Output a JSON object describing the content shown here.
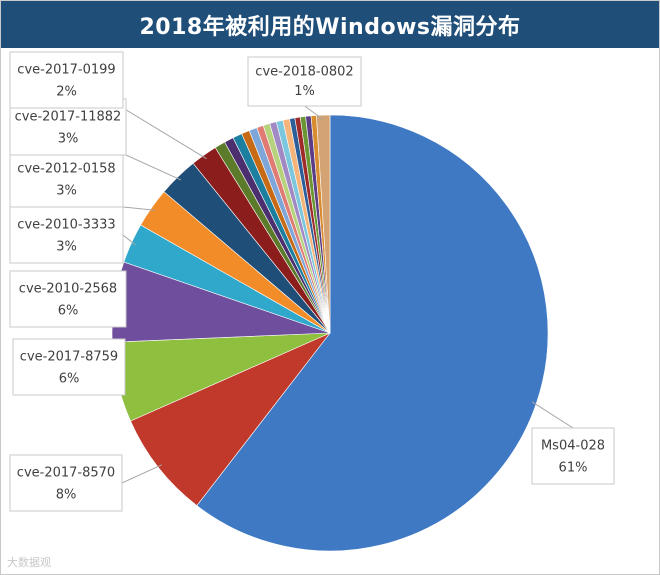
{
  "chart_data": {
    "type": "pie",
    "title": "2018年被利用的Windows漏洞分布",
    "slices": [
      {
        "label": "Ms04-028",
        "pct_label": "61%",
        "value": 61,
        "color": "#3f79c4"
      },
      {
        "label": "cve-2017-8570",
        "pct_label": "8%",
        "value": 8,
        "color": "#c0392b"
      },
      {
        "label": "cve-2017-8759",
        "pct_label": "6%",
        "value": 6,
        "color": "#8fbf3f"
      },
      {
        "label": "cve-2010-2568",
        "pct_label": "6%",
        "value": 6,
        "color": "#6f4e9d"
      },
      {
        "label": "cve-2010-3333",
        "pct_label": "3%",
        "value": 3,
        "color": "#2fa8cc"
      },
      {
        "label": "cve-2012-0158",
        "pct_label": "3%",
        "value": 3,
        "color": "#f28c28"
      },
      {
        "label": "cve-2017-11882",
        "pct_label": "3%",
        "value": 3,
        "color": "#1f4e79"
      },
      {
        "label": "cve-2017-0199",
        "pct_label": "2%",
        "value": 2,
        "color": "#8b1d1d"
      },
      {
        "label": "",
        "pct_label": "",
        "value": 0.8,
        "color": "#5b7a2a"
      },
      {
        "label": "",
        "pct_label": "",
        "value": 0.7,
        "color": "#4b2f6e"
      },
      {
        "label": "",
        "pct_label": "",
        "value": 0.7,
        "color": "#1d7fa0"
      },
      {
        "label": "",
        "pct_label": "",
        "value": 0.6,
        "color": "#c76a16"
      },
      {
        "label": "",
        "pct_label": "",
        "value": 0.6,
        "color": "#7ea6d8"
      },
      {
        "label": "",
        "pct_label": "",
        "value": 0.5,
        "color": "#e07b74"
      },
      {
        "label": "",
        "pct_label": "",
        "value": 0.5,
        "color": "#b7d27c"
      },
      {
        "label": "",
        "pct_label": "",
        "value": 0.5,
        "color": "#a18ac4"
      },
      {
        "label": "",
        "pct_label": "",
        "value": 0.5,
        "color": "#7cc7de"
      },
      {
        "label": "",
        "pct_label": "",
        "value": 0.5,
        "color": "#f5b57a"
      },
      {
        "label": "",
        "pct_label": "",
        "value": 0.4,
        "color": "#2c5f99"
      },
      {
        "label": "",
        "pct_label": "",
        "value": 0.4,
        "color": "#9e2a2a"
      },
      {
        "label": "",
        "pct_label": "",
        "value": 0.4,
        "color": "#6a9634"
      },
      {
        "label": "",
        "pct_label": "",
        "value": 0.4,
        "color": "#5a3d85"
      },
      {
        "label": "",
        "pct_label": "",
        "value": 0.4,
        "color": "#d98c2f"
      },
      {
        "label": "cve-2018-0802",
        "pct_label": "1%",
        "value": 1,
        "color": "#d4a373"
      }
    ],
    "start_angle_deg": 0,
    "direction": "clockwise",
    "legend": "none"
  },
  "watermark": "大数据观"
}
